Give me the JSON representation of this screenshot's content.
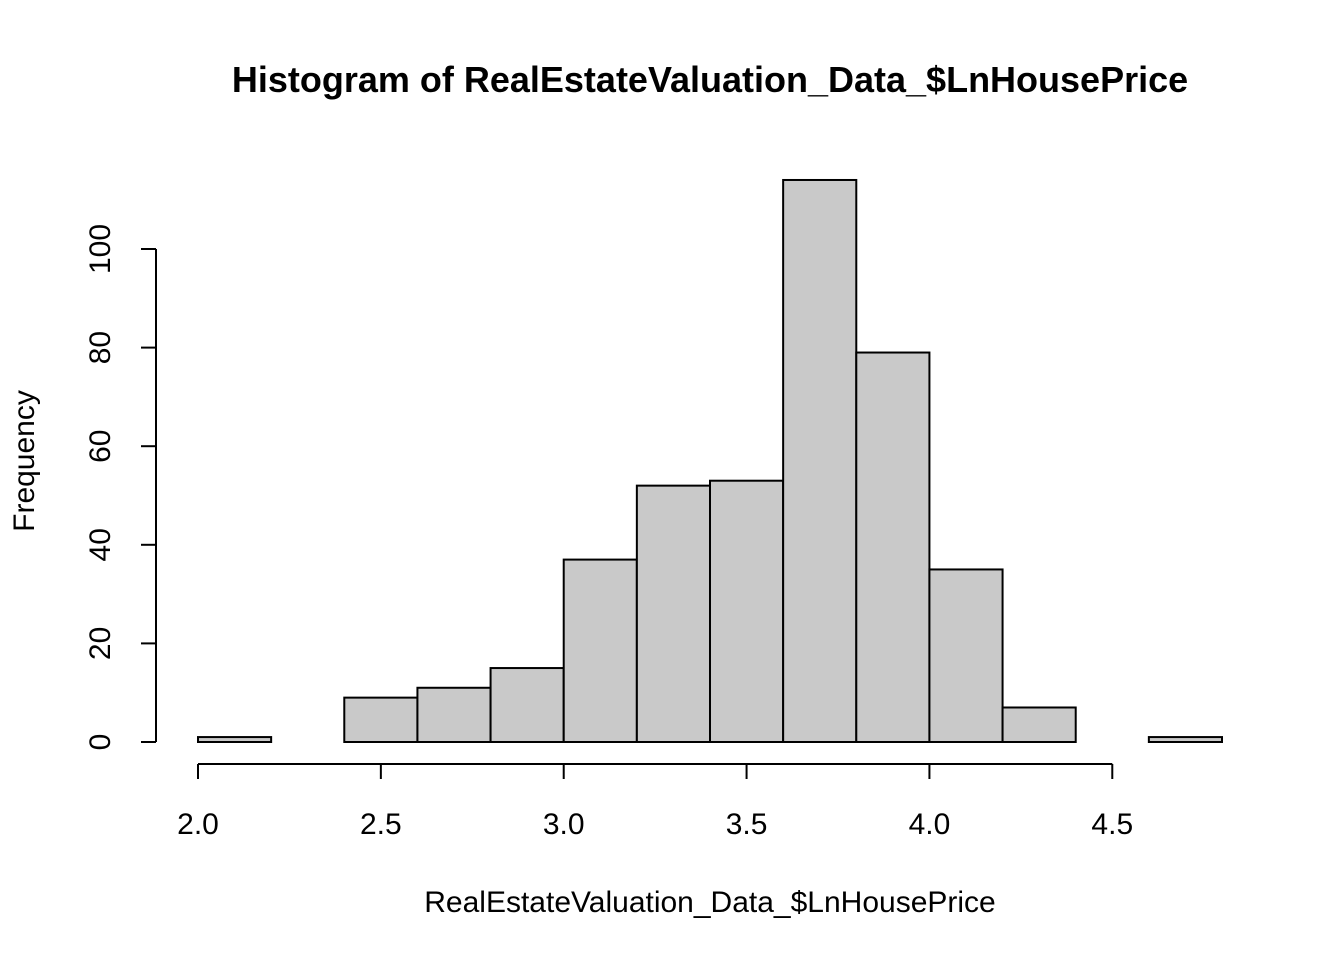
{
  "chart_data": {
    "type": "bar",
    "title": "Histogram of RealEstateValuation_Data_$LnHousePrice",
    "xlabel": "RealEstateValuation_Data_$LnHousePrice",
    "ylabel": "Frequency",
    "bin_edges": [
      2.0,
      2.2,
      2.4,
      2.6,
      2.8,
      3.0,
      3.2,
      3.4,
      3.6,
      3.8,
      4.0,
      4.2,
      4.4,
      4.6,
      4.8
    ],
    "values": [
      1,
      0,
      9,
      11,
      15,
      37,
      52,
      53,
      114,
      79,
      35,
      7,
      0,
      1
    ],
    "xlim": [
      2.0,
      4.8
    ],
    "ylim": [
      0,
      114
    ],
    "x_ticks": [
      2.0,
      2.5,
      3.0,
      3.5,
      4.0,
      4.5
    ],
    "x_tick_labels": [
      "2.0",
      "2.5",
      "3.0",
      "3.5",
      "4.0",
      "4.5"
    ],
    "y_ticks": [
      0,
      20,
      40,
      60,
      80,
      100
    ],
    "y_tick_labels": [
      "0",
      "20",
      "40",
      "60",
      "80",
      "100"
    ],
    "grid": false,
    "bar_fill": "#c9c9c9",
    "bar_stroke": "#000000"
  }
}
